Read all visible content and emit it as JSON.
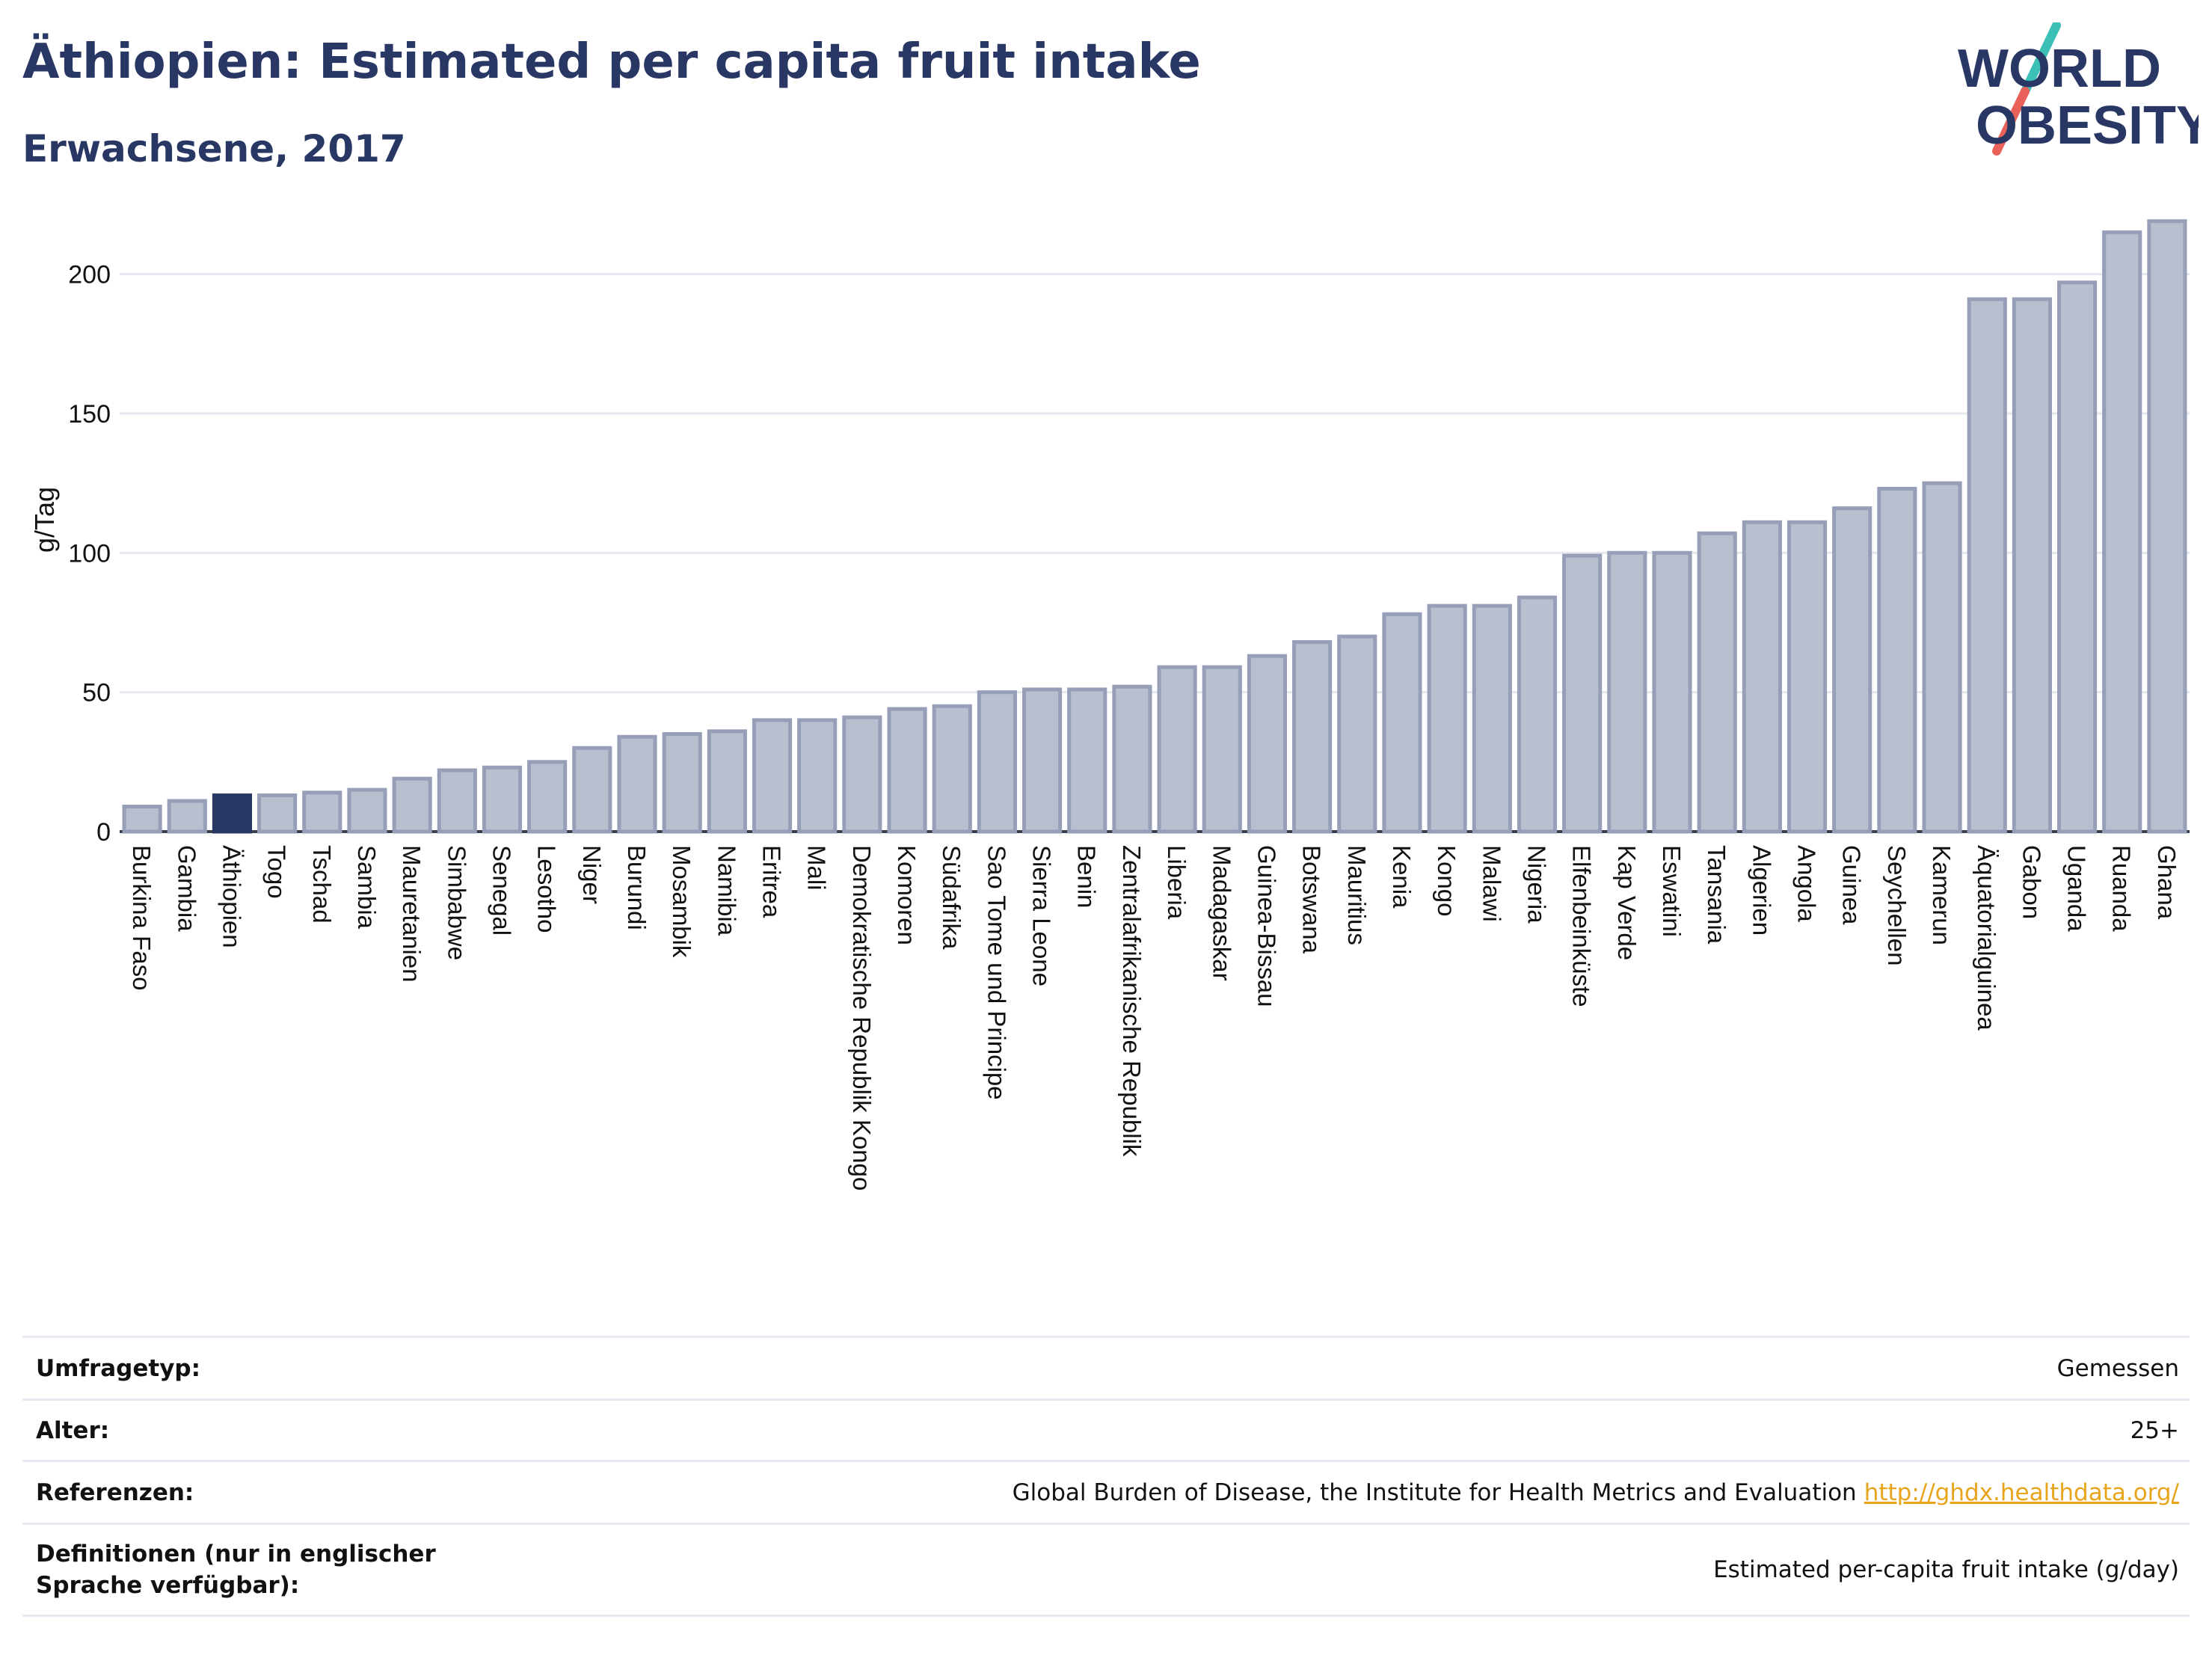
{
  "header": {
    "title": "Äthiopien: Estimated per capita fruit intake",
    "subtitle": "Erwachsene, 2017"
  },
  "logo": {
    "line1": "WORLD",
    "line2": "OBESITY",
    "colors": {
      "text": "#283764",
      "slash_top": "#3cbfb4",
      "slash_bottom": "#e8625a"
    }
  },
  "chart_data": {
    "type": "bar",
    "ylabel": "g/Tag",
    "ylim": [
      0,
      220
    ],
    "yticks": [
      0,
      50,
      100,
      150,
      200
    ],
    "grid": true,
    "highlight": "Äthiopien",
    "colors": {
      "bar": "#b9bfcf",
      "bar_border": "#969eb8",
      "highlight": "#283764"
    },
    "categories": [
      "Burkina Faso",
      "Gambia",
      "Äthiopien",
      "Togo",
      "Tschad",
      "Sambia",
      "Mauretanien",
      "Simbabwe",
      "Senegal",
      "Lesotho",
      "Niger",
      "Burundi",
      "Mosambik",
      "Namibia",
      "Eritrea",
      "Mali",
      "Demokratische Republik Kongo",
      "Komoren",
      "Südafrika",
      "Sao Tome und Principe",
      "Sierra Leone",
      "Benin",
      "Zentralafrikanische Republik",
      "Liberia",
      "Madagaskar",
      "Guinea-Bissau",
      "Botswana",
      "Mauritius",
      "Kenia",
      "Kongo",
      "Malawi",
      "Nigeria",
      "Elfenbeinküste",
      "Kap Verde",
      "Eswatini",
      "Tansania",
      "Algerien",
      "Angola",
      "Guinea",
      "Seychellen",
      "Kamerun",
      "Äquatorialguinea",
      "Gabon",
      "Uganda",
      "Ruanda",
      "Ghana"
    ],
    "values": [
      9,
      11,
      13,
      13,
      14,
      15,
      19,
      22,
      23,
      25,
      30,
      34,
      35,
      36,
      40,
      40,
      41,
      44,
      45,
      50,
      51,
      51,
      52,
      59,
      59,
      63,
      68,
      70,
      78,
      81,
      81,
      84,
      99,
      100,
      100,
      107,
      111,
      111,
      116,
      123,
      125,
      191,
      191,
      197,
      215,
      219
    ]
  },
  "info": {
    "rows": [
      {
        "label": "Umfragetyp:",
        "value": "Gemessen"
      },
      {
        "label": "Alter:",
        "value": "25+"
      },
      {
        "label": "Referenzen:",
        "value": "Global Burden of Disease, the Institute for Health Metrics and Evaluation",
        "link": "http://ghdx.healthdata.org/"
      },
      {
        "label": "Definitionen (nur in englischer Sprache verfügbar):",
        "value": "Estimated per-capita fruit intake (g/day)"
      }
    ]
  }
}
